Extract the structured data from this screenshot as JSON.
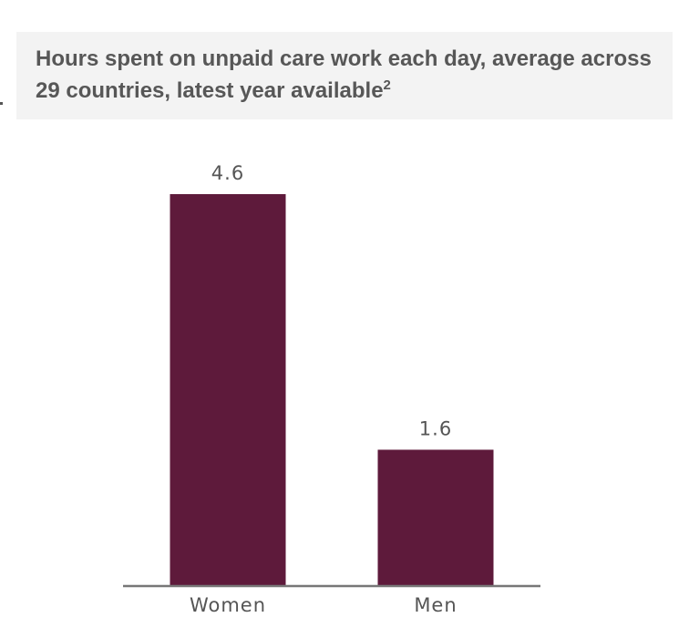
{
  "chart_data": {
    "type": "bar",
    "title": "Hours spent on unpaid care work each day, average across 29 countries, latest year available",
    "title_superscript": "2",
    "categories": [
      "Women",
      "Men"
    ],
    "values": [
      4.6,
      1.6
    ],
    "color": "#5e1a3b",
    "ylim": [
      0,
      4.6
    ]
  }
}
